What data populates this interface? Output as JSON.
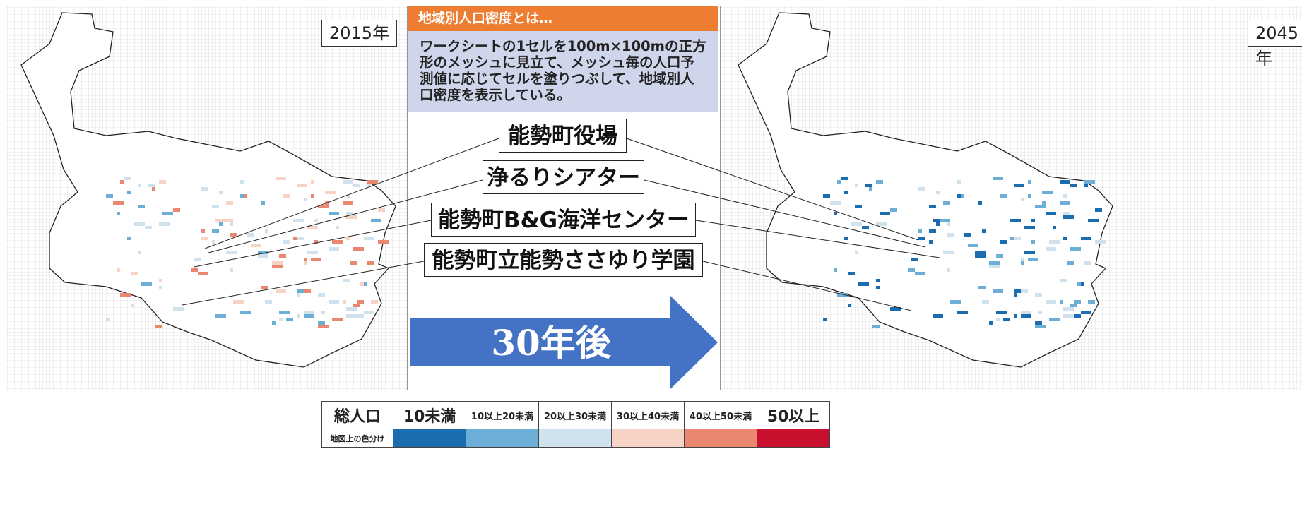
{
  "maps": [
    {
      "year_label": "2015年"
    },
    {
      "year_label": "2045年"
    }
  ],
  "info": {
    "title": "地域別人口密度とは…",
    "body": "ワークシートの1セルを100m×100mの正方形のメッシュに見立て、メッシュ毎の人口予測値に応じてセルを塗りつぶして、地域別人口密度を表示している。"
  },
  "places": [
    "能勢町役場",
    "浄るりシアター",
    "能勢町B&G海洋センター",
    "能勢町立能勢ささゆり学園"
  ],
  "arrow_label": "30年後",
  "legend": {
    "header": "総人口",
    "row_label": "地図上の色分け",
    "classes": [
      {
        "label": "10未満",
        "color": "#1b6db0"
      },
      {
        "label": "10以上20未満",
        "color": "#6caed5"
      },
      {
        "label": "20以上30未満",
        "color": "#cfe2ee"
      },
      {
        "label": "30以上40未満",
        "color": "#f6d3c4"
      },
      {
        "label": "40以上50未満",
        "color": "#ea8771"
      },
      {
        "label": "50以上",
        "color": "#c8102e"
      }
    ]
  }
}
